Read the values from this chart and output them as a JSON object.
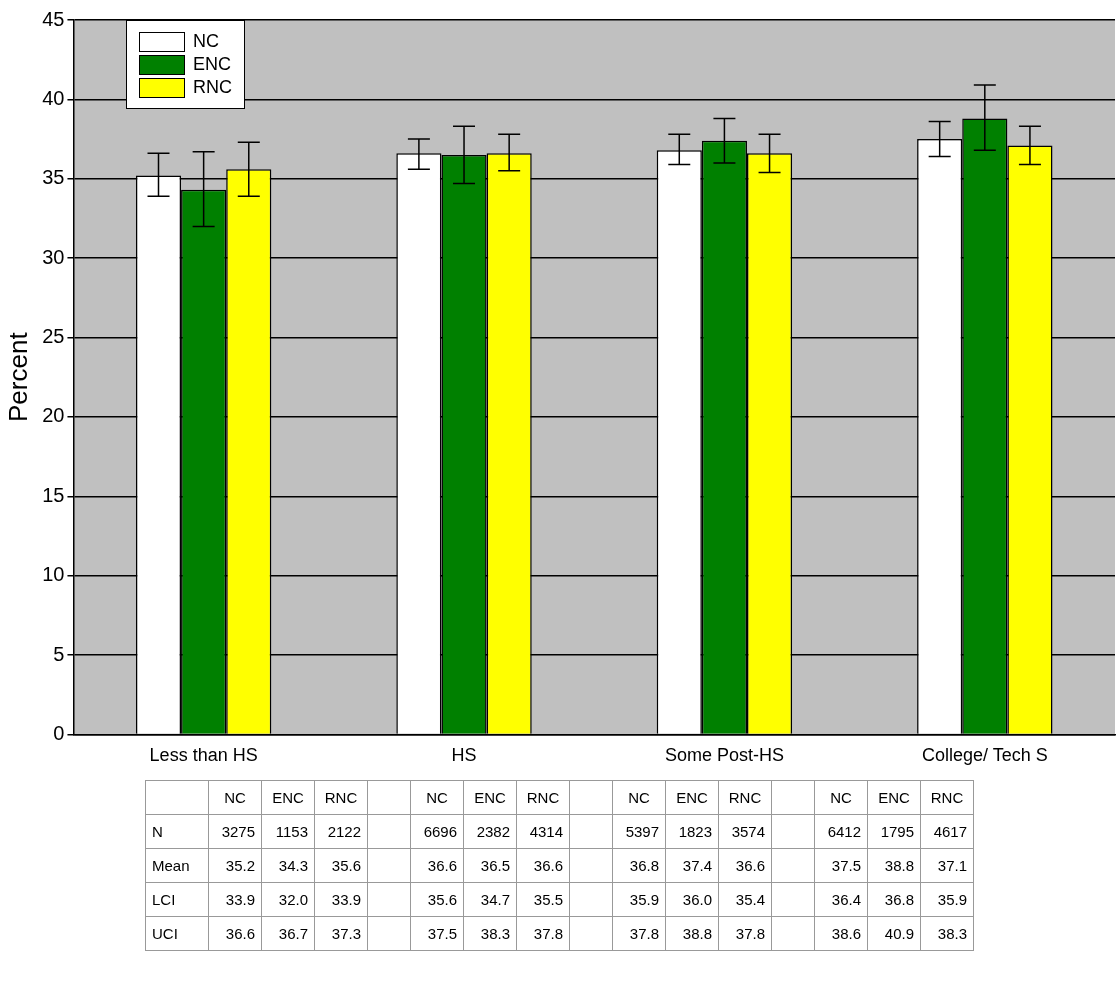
{
  "chart_data": {
    "type": "bar",
    "ylabel": "Percent",
    "categories": [
      "Less than HS",
      "HS",
      "Some Post-HS",
      "College/ Tech S"
    ],
    "series": [
      {
        "name": "NC",
        "color": "#ffffff",
        "values": [
          35.2,
          36.6,
          36.8,
          37.5
        ],
        "errors": [
          [
            33.9,
            36.6
          ],
          [
            35.6,
            37.5
          ],
          [
            35.9,
            37.8
          ],
          [
            36.4,
            38.6
          ]
        ]
      },
      {
        "name": "ENC",
        "color": "#008000",
        "values": [
          34.3,
          36.5,
          37.4,
          38.8
        ],
        "errors": [
          [
            32.0,
            36.7
          ],
          [
            34.7,
            38.3
          ],
          [
            36.0,
            38.8
          ],
          [
            36.8,
            40.9
          ]
        ]
      },
      {
        "name": "RNC",
        "color": "#ffff00",
        "values": [
          35.6,
          36.6,
          36.6,
          37.1
        ],
        "errors": [
          [
            33.9,
            37.3
          ],
          [
            35.5,
            37.8
          ],
          [
            35.4,
            37.8
          ],
          [
            35.9,
            38.3
          ]
        ]
      }
    ],
    "ylim": [
      0,
      45
    ],
    "yticks": [
      0,
      5,
      10,
      15,
      20,
      25,
      30,
      35,
      40,
      45
    ],
    "grid": "y",
    "legend": "top left",
    "annotations": [
      "N",
      "3275",
      "1153",
      "2122",
      "6696",
      "2382",
      "4314",
      "5397",
      "1823",
      "3574",
      "6412",
      "1795",
      "4617",
      "Mean",
      "35.2",
      "34.3",
      "35.6",
      "36.6",
      "36.5",
      "36.6",
      "36.8",
      "37.4",
      "36.6",
      "37.5",
      "38.8",
      "37.1",
      "LCI",
      "33.9",
      "32.0",
      "33.9",
      "35.6",
      "34.7",
      "35.5",
      "35.9",
      "36.0",
      "35.4",
      "36.4",
      "36.8",
      "35.9",
      "UCI",
      "36.6",
      "36.7",
      "37.3",
      "37.5",
      "38.3",
      "37.8",
      "37.8",
      "38.8",
      "37.8",
      "38.6",
      "40.9",
      "38.3"
    ]
  }
}
